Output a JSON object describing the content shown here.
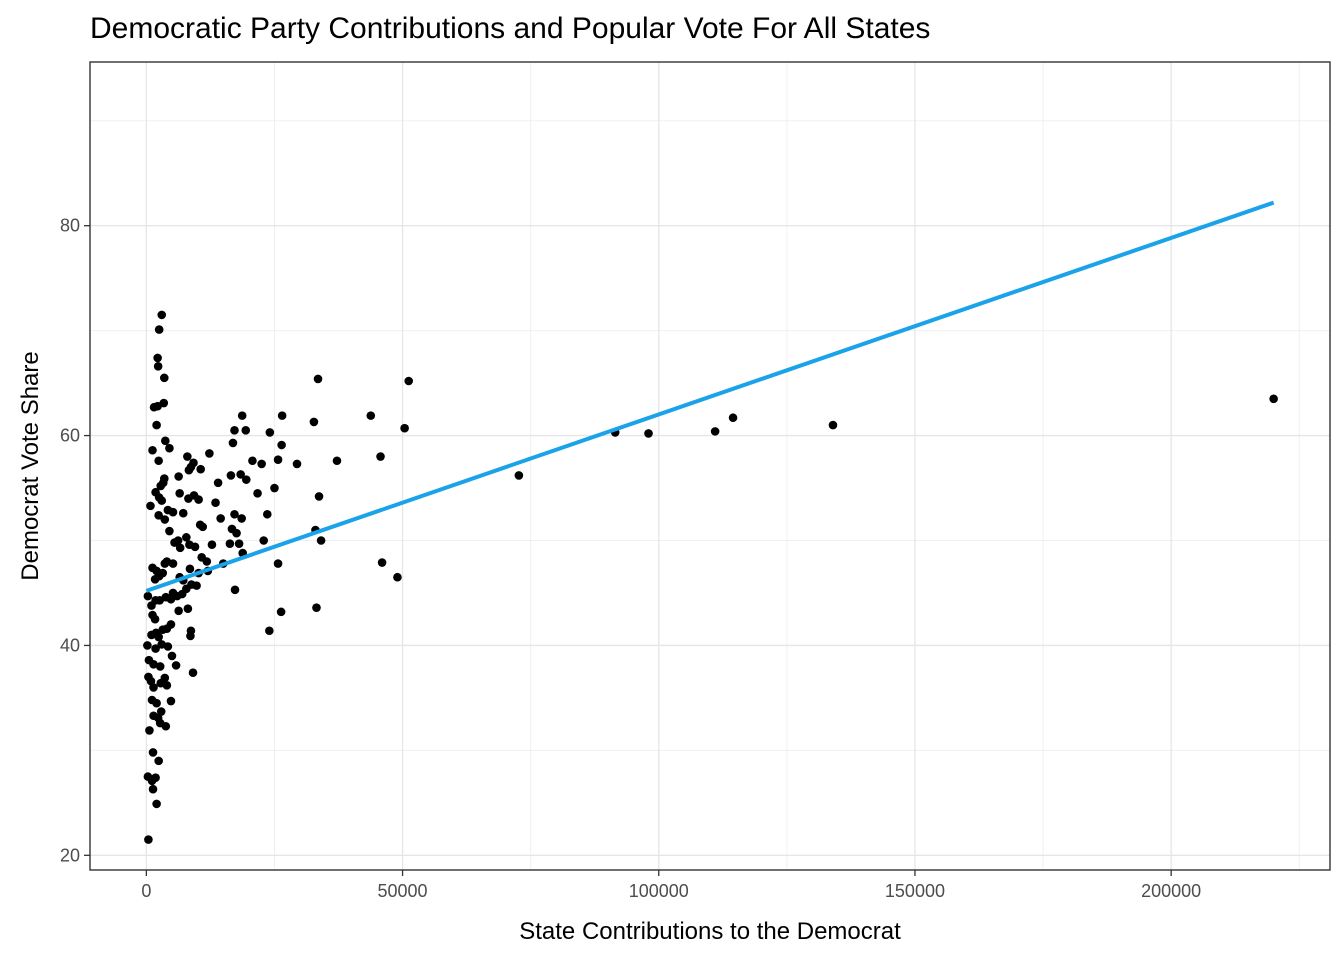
{
  "chart_data": {
    "type": "scatter",
    "title": "Democratic Party Contributions and Popular Vote For All States",
    "xlabel": "State Contributions to the Democrat",
    "ylabel": "Democrat Vote Share",
    "xlim": [
      -11000,
      231000
    ],
    "ylim": [
      18.6,
      95.6
    ],
    "x_ticks": [
      0,
      50000,
      100000,
      150000,
      200000
    ],
    "x_tick_labels": [
      "0",
      "50000",
      "100000",
      "150000",
      "200000"
    ],
    "y_ticks": [
      20,
      40,
      60,
      80
    ],
    "y_tick_labels": [
      "20",
      "40",
      "60",
      "80"
    ],
    "grid": true,
    "point_color": "#000000",
    "fit_line": {
      "color": "#1aa3e8",
      "x": [
        0,
        220000
      ],
      "y": [
        45.2,
        82.2
      ]
    },
    "points": [
      [
        3000,
        71.5
      ],
      [
        2500,
        70.1
      ],
      [
        2200,
        67.4
      ],
      [
        2300,
        66.6
      ],
      [
        3500,
        65.5
      ],
      [
        1500,
        62.7
      ],
      [
        2200,
        62.8
      ],
      [
        3400,
        63.1
      ],
      [
        2000,
        61.0
      ],
      [
        1200,
        58.6
      ],
      [
        3700,
        59.5
      ],
      [
        2400,
        57.6
      ],
      [
        4500,
        58.8
      ],
      [
        3500,
        55.9
      ],
      [
        2800,
        55.2
      ],
      [
        3300,
        55.5
      ],
      [
        1800,
        54.6
      ],
      [
        2500,
        54.1
      ],
      [
        3000,
        53.8
      ],
      [
        800,
        53.3
      ],
      [
        4200,
        52.9
      ],
      [
        5200,
        52.7
      ],
      [
        2400,
        52.4
      ],
      [
        3600,
        52.0
      ],
      [
        4500,
        50.9
      ],
      [
        6300,
        56.1
      ],
      [
        6500,
        54.5
      ],
      [
        7200,
        52.6
      ],
      [
        8000,
        58.0
      ],
      [
        8700,
        57.0
      ],
      [
        8300,
        56.7
      ],
      [
        9200,
        57.4
      ],
      [
        10600,
        56.8
      ],
      [
        12300,
        58.3
      ],
      [
        8200,
        54.0
      ],
      [
        9300,
        54.3
      ],
      [
        10200,
        53.9
      ],
      [
        6200,
        50.0
      ],
      [
        5500,
        49.8
      ],
      [
        6600,
        49.3
      ],
      [
        7800,
        50.3
      ],
      [
        8400,
        49.6
      ],
      [
        9500,
        49.4
      ],
      [
        11000,
        51.3
      ],
      [
        10500,
        51.5
      ],
      [
        13500,
        53.6
      ],
      [
        14000,
        55.5
      ],
      [
        14500,
        52.1
      ],
      [
        12800,
        49.6
      ],
      [
        11800,
        48.0
      ],
      [
        10800,
        48.4
      ],
      [
        5200,
        47.8
      ],
      [
        4000,
        48.0
      ],
      [
        3600,
        47.8
      ],
      [
        1200,
        47.4
      ],
      [
        2000,
        47.1
      ],
      [
        1700,
        46.3
      ],
      [
        3200,
        46.9
      ],
      [
        2500,
        46.6
      ],
      [
        6500,
        46.5
      ],
      [
        8500,
        47.3
      ],
      [
        7200,
        46.2
      ],
      [
        10200,
        46.9
      ],
      [
        12000,
        47.1
      ],
      [
        15000,
        47.8
      ],
      [
        9800,
        45.7
      ],
      [
        8800,
        45.8
      ],
      [
        7800,
        45.4
      ],
      [
        7000,
        44.9
      ],
      [
        6000,
        44.7
      ],
      [
        4800,
        44.4
      ],
      [
        3800,
        44.6
      ],
      [
        5200,
        45.0
      ],
      [
        2600,
        44.3
      ],
      [
        1800,
        44.3
      ],
      [
        300,
        44.7
      ],
      [
        1000,
        43.8
      ],
      [
        1200,
        42.9
      ],
      [
        1700,
        42.5
      ],
      [
        6300,
        43.3
      ],
      [
        8100,
        43.5
      ],
      [
        8700,
        41.4
      ],
      [
        8600,
        40.9
      ],
      [
        4800,
        42.0
      ],
      [
        4000,
        41.6
      ],
      [
        3200,
        41.5
      ],
      [
        2400,
        40.8
      ],
      [
        1900,
        41.2
      ],
      [
        1000,
        41.0
      ],
      [
        1800,
        39.7
      ],
      [
        3000,
        40.1
      ],
      [
        4200,
        39.9
      ],
      [
        5000,
        39.0
      ],
      [
        5800,
        38.1
      ],
      [
        2700,
        38.0
      ],
      [
        1400,
        38.2
      ],
      [
        500,
        38.6
      ],
      [
        200,
        40.0
      ],
      [
        400,
        37.0
      ],
      [
        900,
        36.6
      ],
      [
        1400,
        36.0
      ],
      [
        2800,
        36.4
      ],
      [
        3600,
        36.9
      ],
      [
        4000,
        36.2
      ],
      [
        9100,
        37.4
      ],
      [
        1100,
        34.8
      ],
      [
        2000,
        34.5
      ],
      [
        2900,
        33.7
      ],
      [
        4800,
        34.7
      ],
      [
        1400,
        33.3
      ],
      [
        2300,
        33.1
      ],
      [
        2700,
        32.6
      ],
      [
        3800,
        32.3
      ],
      [
        600,
        31.9
      ],
      [
        1300,
        29.8
      ],
      [
        2400,
        29.0
      ],
      [
        300,
        27.5
      ],
      [
        1100,
        27.1
      ],
      [
        1800,
        27.4
      ],
      [
        1300,
        26.3
      ],
      [
        2000,
        24.9
      ],
      [
        400,
        21.5
      ],
      [
        17200,
        60.5
      ],
      [
        18700,
        61.9
      ],
      [
        19400,
        60.5
      ],
      [
        16900,
        59.3
      ],
      [
        18400,
        56.3
      ],
      [
        19500,
        55.8
      ],
      [
        16500,
        56.2
      ],
      [
        20700,
        57.6
      ],
      [
        22500,
        57.3
      ],
      [
        24100,
        60.3
      ],
      [
        26500,
        61.9
      ],
      [
        26400,
        59.1
      ],
      [
        25700,
        57.7
      ],
      [
        25000,
        55.0
      ],
      [
        21700,
        54.5
      ],
      [
        23600,
        52.5
      ],
      [
        17200,
        52.5
      ],
      [
        16700,
        51.1
      ],
      [
        17600,
        50.7
      ],
      [
        18600,
        52.1
      ],
      [
        16300,
        49.7
      ],
      [
        18100,
        49.7
      ],
      [
        22900,
        50.0
      ],
      [
        18800,
        48.8
      ],
      [
        17300,
        45.3
      ],
      [
        25700,
        47.8
      ],
      [
        24000,
        41.4
      ],
      [
        26300,
        43.2
      ],
      [
        29400,
        57.3
      ],
      [
        32700,
        61.3
      ],
      [
        33500,
        65.4
      ],
      [
        37200,
        57.6
      ],
      [
        33700,
        54.2
      ],
      [
        33000,
        51.0
      ],
      [
        34100,
        50.0
      ],
      [
        33200,
        43.6
      ],
      [
        43800,
        61.9
      ],
      [
        45700,
        58.0
      ],
      [
        46000,
        47.9
      ],
      [
        49000,
        46.5
      ],
      [
        50400,
        60.7
      ],
      [
        51200,
        65.2
      ],
      [
        72700,
        56.2
      ],
      [
        91500,
        60.3
      ],
      [
        98000,
        60.2
      ],
      [
        111000,
        60.4
      ],
      [
        114500,
        61.7
      ],
      [
        134000,
        61.0
      ],
      [
        220000,
        63.5
      ]
    ]
  }
}
